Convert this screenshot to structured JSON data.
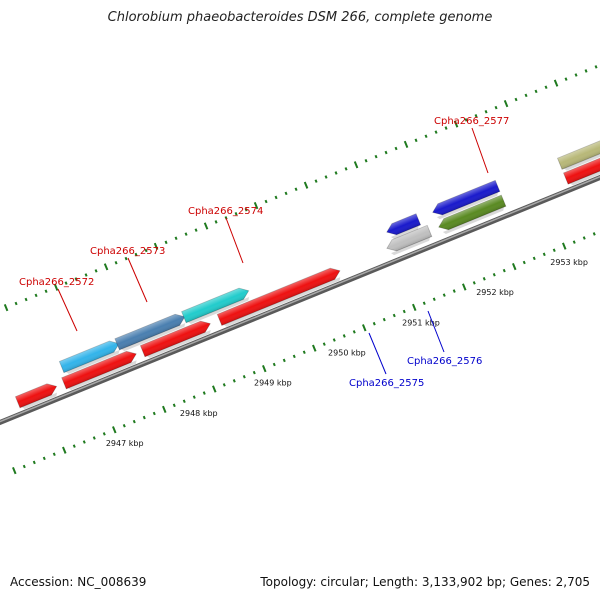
{
  "title": "Chlorobium phaeobacteroides DSM 266, complete genome",
  "footer": {
    "accession": "Accession: NC_008639",
    "summary": "Topology: circular; Length: 3,133,902 bp; Genes: 2,705"
  },
  "scale_labels": [
    "2947 kbp",
    "2948 kbp",
    "2949 kbp",
    "2950 kbp",
    "2951 kbp",
    "2952 kbp",
    "2953 kbp"
  ],
  "gene_labels": [
    {
      "text": "Cpha266_2572",
      "color": "#cc0000"
    },
    {
      "text": "Cpha266_2573",
      "color": "#cc0000"
    },
    {
      "text": "Cpha266_2574",
      "color": "#cc0000"
    },
    {
      "text": "Cpha266_2577",
      "color": "#cc0000"
    },
    {
      "text": "Cpha266_2575",
      "color": "#0000cc"
    },
    {
      "text": "Cpha266_2576",
      "color": "#0000cc"
    }
  ],
  "colors": {
    "red": "#ee1111",
    "cyan": "#22cccc",
    "sky": "#33b4ea",
    "steel": "#4a7fb0",
    "olive": "#b8b878",
    "blue": "#1a1acc",
    "darkgreen": "#5a8a22",
    "grey": "#c0c0c0",
    "tick": "#1f7a1f",
    "backbone": "#808080"
  }
}
